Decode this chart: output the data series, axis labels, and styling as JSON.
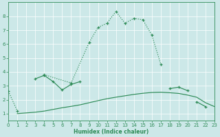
{
  "xlabel": "Humidex (Indice chaleur)",
  "x": [
    0,
    1,
    2,
    3,
    4,
    5,
    6,
    7,
    8,
    9,
    10,
    11,
    12,
    13,
    14,
    15,
    16,
    17,
    18,
    19,
    20,
    21,
    22,
    23
  ],
  "dotted_upper_y": [
    2.6,
    1.2,
    null,
    null,
    3.8,
    null,
    null,
    3.2,
    null,
    6.1,
    7.2,
    7.5,
    8.35,
    7.5,
    7.85,
    7.75,
    6.65,
    4.55,
    null,
    null,
    null,
    null,
    null,
    null
  ],
  "solid_mid_y": [
    null,
    null,
    null,
    3.5,
    3.75,
    3.3,
    2.7,
    3.1,
    3.3,
    null,
    null,
    null,
    null,
    null,
    null,
    null,
    null,
    null,
    2.8,
    2.9,
    2.65,
    null,
    null,
    null
  ],
  "smooth_lower_y": [
    null,
    1.0,
    1.05,
    1.1,
    1.18,
    1.3,
    1.42,
    1.52,
    1.63,
    1.78,
    1.93,
    2.07,
    2.18,
    2.28,
    2.38,
    2.46,
    2.52,
    2.54,
    2.5,
    2.45,
    2.33,
    2.18,
    1.78,
    1.5
  ],
  "line_color": "#2e8b57",
  "bg_color": "#cce8e8",
  "grid_color": "#ffffff",
  "ylim": [
    0.5,
    9.0
  ],
  "xlim": [
    0,
    23
  ],
  "yticks": [
    1,
    2,
    3,
    4,
    5,
    6,
    7,
    8
  ],
  "xticks": [
    0,
    1,
    2,
    3,
    4,
    5,
    6,
    7,
    8,
    9,
    10,
    11,
    12,
    13,
    14,
    15,
    16,
    17,
    18,
    19,
    20,
    21,
    22,
    23
  ]
}
